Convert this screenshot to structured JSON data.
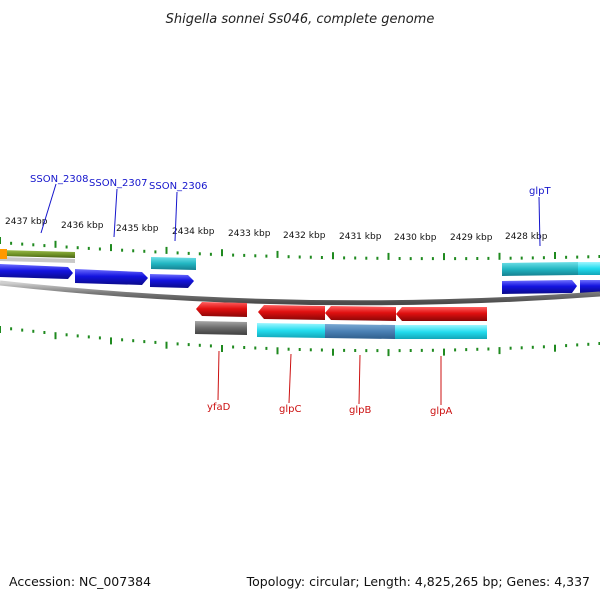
{
  "title": "Shigella sonnei Ss046, complete genome",
  "footer": {
    "accession": "Accession: NC_007384",
    "topology": "Topology: circular; Length: 4,825,265 bp; Genes: 4,337"
  },
  "colors": {
    "forward_cds": "#1515dd",
    "reverse_cds": "#dd1111",
    "forward_rna": "#2ab8c4",
    "reverse_rna": "#28dcec",
    "blast_band": "#4a86b8",
    "backbone": "#808080",
    "tick": "#1f8a1f",
    "forward_label": "#1515cc",
    "reverse_label": "#cc1111",
    "olive_feature": "#6b8e23",
    "orange_feature": "#ff9900",
    "gray_feature": "#6a6a6a"
  },
  "ruler": {
    "labels": [
      "2437 kbp",
      "2436 kbp",
      "2435 kbp",
      "2434 kbp",
      "2433 kbp",
      "2432 kbp",
      "2431 kbp",
      "2430 kbp",
      "2429 kbp",
      "2428 kbp"
    ]
  },
  "genes": {
    "forward": [
      "SSON_2308",
      "SSON_2307",
      "SSON_2306",
      "glpT"
    ],
    "reverse": [
      "yfaD",
      "glpC",
      "glpB",
      "glpA"
    ]
  }
}
